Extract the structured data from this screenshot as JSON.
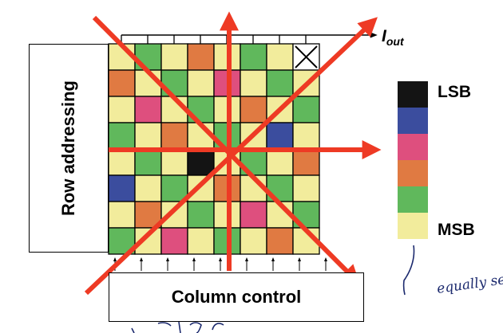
{
  "row_block": {
    "label": "Row addressing"
  },
  "column_block": {
    "label": "Column control"
  },
  "output": {
    "main": "I",
    "sub": "out"
  },
  "legend": {
    "top_label": "LSB",
    "bottom_label": "MSB",
    "colors": [
      "#141414",
      "#3b4d9e",
      "#de4f7e",
      "#e07a42",
      "#60b85c",
      "#f2ec9c"
    ]
  },
  "grid": {
    "rows": 8,
    "cols": 8,
    "colors": {
      "Y": "#f2ec9c",
      "G": "#60b85c",
      "O": "#e07a42",
      "P": "#de4f7e",
      "B": "#3b4d9e",
      "K": "#141414"
    },
    "cells": [
      [
        "Y",
        "G",
        "Y",
        "O",
        "Y",
        "G",
        "Y",
        "X"
      ],
      [
        "O",
        "Y",
        "G",
        "Y",
        "P",
        "Y",
        "G",
        "Y"
      ],
      [
        "Y",
        "P",
        "Y",
        "G",
        "Y",
        "O",
        "Y",
        "G"
      ],
      [
        "G",
        "Y",
        "O",
        "Y",
        "G",
        "Y",
        "B",
        "Y"
      ],
      [
        "Y",
        "G",
        "Y",
        "K",
        "Y",
        "G",
        "Y",
        "O"
      ],
      [
        "B",
        "Y",
        "G",
        "Y",
        "O",
        "Y",
        "G",
        "Y"
      ],
      [
        "Y",
        "O",
        "Y",
        "G",
        "Y",
        "P",
        "Y",
        "G"
      ],
      [
        "G",
        "Y",
        "P",
        "Y",
        "G",
        "Y",
        "O",
        "Y"
      ]
    ]
  },
  "handwriting": {
    "right_note": "equally separ",
    "bottom_note": ""
  },
  "accent_color": "#ee3a24"
}
